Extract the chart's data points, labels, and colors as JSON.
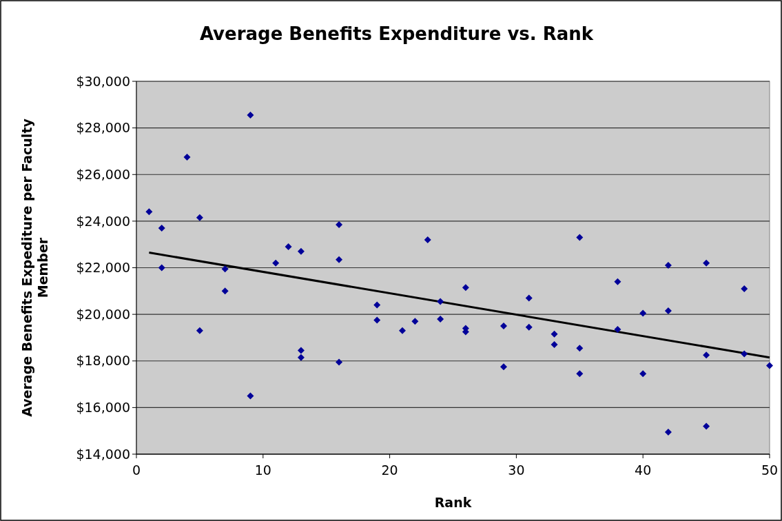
{
  "chart_data": {
    "type": "scatter",
    "title": "Average Benefits Expenditure vs. Rank",
    "xlabel": "Rank",
    "ylabel": "Average Benefits Expediture per Faculty Member",
    "xlim": [
      0,
      50
    ],
    "xticks": [
      0,
      10,
      20,
      30,
      40,
      50
    ],
    "ylim": [
      14000,
      30000
    ],
    "yticks": [
      {
        "value": 14000,
        "label": "$14,000"
      },
      {
        "value": 16000,
        "label": "$16,000"
      },
      {
        "value": 18000,
        "label": "$18,000"
      },
      {
        "value": 20000,
        "label": "$20,000"
      },
      {
        "value": 22000,
        "label": "$22,000"
      },
      {
        "value": 24000,
        "label": "$24,000"
      },
      {
        "value": 26000,
        "label": "$26,000"
      },
      {
        "value": 28000,
        "label": "$28,000"
      },
      {
        "value": 30000,
        "label": "$30,000"
      }
    ],
    "grid": "y",
    "marker": "diamond",
    "series": [
      {
        "color": "#000099",
        "x": [
          1,
          2,
          2,
          4,
          5,
          5,
          7,
          7,
          9,
          9,
          11,
          12,
          13,
          13,
          13,
          16,
          16,
          16,
          19,
          19,
          21,
          22,
          23,
          24,
          24,
          26,
          26,
          26,
          29,
          29,
          31,
          31,
          33,
          33,
          35,
          35,
          35,
          38,
          38,
          40,
          40,
          42,
          42,
          42,
          45,
          45,
          45,
          48,
          48,
          50
        ],
        "values": [
          24400,
          23700,
          22000,
          26750,
          24150,
          19300,
          21950,
          21000,
          28550,
          16500,
          22200,
          22900,
          22700,
          18450,
          18150,
          23850,
          22350,
          17950,
          20400,
          19750,
          19300,
          19700,
          23200,
          20550,
          19800,
          21150,
          19400,
          19250,
          19500,
          17750,
          20700,
          19450,
          19150,
          18700,
          23300,
          18550,
          17450,
          21400,
          19350,
          20050,
          17450,
          22100,
          20150,
          14950,
          22200,
          18250,
          15200,
          21100,
          18300,
          17800
        ]
      },
      {
        "type": "line",
        "color": "#000000",
        "x": [
          1,
          50
        ],
        "values": [
          22650,
          18150
        ],
        "marker": "none",
        "line_style": "solid"
      }
    ]
  }
}
